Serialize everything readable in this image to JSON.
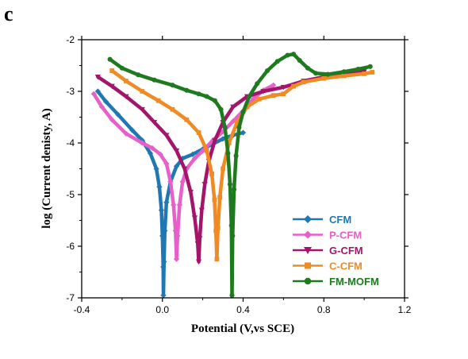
{
  "panel_label": "c",
  "chart_data": {
    "type": "line",
    "xlabel": "Potential (V,vs SCE)",
    "ylabel": "log (Current denisty, A)",
    "xlim": [
      -0.4,
      1.2
    ],
    "ylim": [
      -7,
      -2
    ],
    "xticks": [
      "-0.4",
      "0.0",
      "0.4",
      "0.8",
      "1.2"
    ],
    "yticks": [
      "-2",
      "-3",
      "-4",
      "-5",
      "-6",
      "-7"
    ],
    "legend_position": "bottom-right",
    "grid": false,
    "series": [
      {
        "name": "CFM",
        "color": "#1f77b4",
        "marker": "diamond",
        "points": [
          [
            -0.32,
            -3.0
          ],
          [
            -0.28,
            -3.2
          ],
          [
            -0.22,
            -3.45
          ],
          [
            -0.15,
            -3.75
          ],
          [
            -0.1,
            -3.95
          ],
          [
            -0.06,
            -4.2
          ],
          [
            -0.03,
            -4.5
          ],
          [
            -0.015,
            -4.85
          ],
          [
            -0.005,
            -5.3
          ],
          [
            0.0,
            -5.8
          ],
          [
            0.004,
            -6.4
          ],
          [
            0.005,
            -6.95
          ],
          [
            0.008,
            -6.3
          ],
          [
            0.012,
            -5.7
          ],
          [
            0.02,
            -5.15
          ],
          [
            0.04,
            -4.75
          ],
          [
            0.07,
            -4.45
          ],
          [
            0.1,
            -4.3
          ],
          [
            0.15,
            -4.22
          ],
          [
            0.2,
            -4.12
          ],
          [
            0.25,
            -4.02
          ],
          [
            0.3,
            -3.92
          ],
          [
            0.35,
            -3.85
          ],
          [
            0.4,
            -3.8
          ]
        ]
      },
      {
        "name": "P-CFM",
        "color": "#e75fc8",
        "marker": "diamond",
        "points": [
          [
            -0.34,
            -3.05
          ],
          [
            -0.3,
            -3.3
          ],
          [
            -0.25,
            -3.55
          ],
          [
            -0.18,
            -3.82
          ],
          [
            -0.1,
            -4.0
          ],
          [
            -0.05,
            -4.1
          ],
          [
            -0.01,
            -4.22
          ],
          [
            0.02,
            -4.4
          ],
          [
            0.04,
            -4.75
          ],
          [
            0.055,
            -5.2
          ],
          [
            0.065,
            -5.7
          ],
          [
            0.07,
            -6.25
          ],
          [
            0.075,
            -5.8
          ],
          [
            0.085,
            -5.2
          ],
          [
            0.1,
            -4.75
          ],
          [
            0.12,
            -4.5
          ],
          [
            0.16,
            -4.3
          ],
          [
            0.2,
            -4.15
          ],
          [
            0.25,
            -3.95
          ],
          [
            0.3,
            -3.78
          ],
          [
            0.35,
            -3.58
          ],
          [
            0.4,
            -3.38
          ],
          [
            0.45,
            -3.15
          ],
          [
            0.5,
            -2.98
          ],
          [
            0.55,
            -2.88
          ]
        ]
      },
      {
        "name": "G-CFM",
        "color": "#a3146b",
        "marker": "triangle-down",
        "points": [
          [
            -0.32,
            -2.72
          ],
          [
            -0.25,
            -2.9
          ],
          [
            -0.18,
            -3.1
          ],
          [
            -0.1,
            -3.35
          ],
          [
            -0.04,
            -3.6
          ],
          [
            0.02,
            -3.85
          ],
          [
            0.07,
            -4.15
          ],
          [
            0.11,
            -4.5
          ],
          [
            0.14,
            -4.95
          ],
          [
            0.16,
            -5.45
          ],
          [
            0.175,
            -5.95
          ],
          [
            0.18,
            -6.3
          ],
          [
            0.185,
            -5.85
          ],
          [
            0.195,
            -5.3
          ],
          [
            0.21,
            -4.8
          ],
          [
            0.23,
            -4.35
          ],
          [
            0.26,
            -3.95
          ],
          [
            0.3,
            -3.6
          ],
          [
            0.35,
            -3.3
          ],
          [
            0.42,
            -3.1
          ],
          [
            0.5,
            -3.0
          ],
          [
            0.6,
            -2.92
          ],
          [
            0.7,
            -2.8
          ],
          [
            0.8,
            -2.72
          ],
          [
            0.9,
            -2.66
          ],
          [
            1.0,
            -2.62
          ]
        ]
      },
      {
        "name": "C-CFM",
        "color": "#f08a24",
        "marker": "square",
        "points": [
          [
            -0.25,
            -2.6
          ],
          [
            -0.18,
            -2.8
          ],
          [
            -0.1,
            -3.0
          ],
          [
            -0.02,
            -3.18
          ],
          [
            0.05,
            -3.35
          ],
          [
            0.12,
            -3.55
          ],
          [
            0.18,
            -3.8
          ],
          [
            0.22,
            -4.15
          ],
          [
            0.245,
            -4.6
          ],
          [
            0.258,
            -5.1
          ],
          [
            0.265,
            -5.7
          ],
          [
            0.27,
            -6.25
          ],
          [
            0.275,
            -5.65
          ],
          [
            0.285,
            -5.05
          ],
          [
            0.3,
            -4.5
          ],
          [
            0.33,
            -4.0
          ],
          [
            0.37,
            -3.6
          ],
          [
            0.42,
            -3.3
          ],
          [
            0.48,
            -3.15
          ],
          [
            0.55,
            -3.08
          ],
          [
            0.6,
            -3.05
          ],
          [
            0.65,
            -2.9
          ],
          [
            0.7,
            -2.82
          ],
          [
            0.8,
            -2.75
          ],
          [
            0.9,
            -2.7
          ],
          [
            1.0,
            -2.66
          ],
          [
            1.04,
            -2.63
          ]
        ]
      },
      {
        "name": "FM-MOFM",
        "color": "#1e7a1e",
        "marker": "circle",
        "points": [
          [
            -0.26,
            -2.38
          ],
          [
            -0.2,
            -2.55
          ],
          [
            -0.12,
            -2.68
          ],
          [
            -0.04,
            -2.78
          ],
          [
            0.05,
            -2.88
          ],
          [
            0.12,
            -2.98
          ],
          [
            0.18,
            -3.05
          ],
          [
            0.22,
            -3.1
          ],
          [
            0.26,
            -3.18
          ],
          [
            0.29,
            -3.35
          ],
          [
            0.31,
            -3.7
          ],
          [
            0.325,
            -4.2
          ],
          [
            0.335,
            -4.8
          ],
          [
            0.342,
            -5.6
          ],
          [
            0.345,
            -6.95
          ],
          [
            0.348,
            -5.8
          ],
          [
            0.355,
            -4.9
          ],
          [
            0.365,
            -4.25
          ],
          [
            0.38,
            -3.7
          ],
          [
            0.4,
            -3.4
          ],
          [
            0.43,
            -3.1
          ],
          [
            0.47,
            -2.85
          ],
          [
            0.52,
            -2.6
          ],
          [
            0.57,
            -2.42
          ],
          [
            0.62,
            -2.3
          ],
          [
            0.65,
            -2.28
          ],
          [
            0.68,
            -2.4
          ],
          [
            0.72,
            -2.55
          ],
          [
            0.76,
            -2.65
          ],
          [
            0.82,
            -2.67
          ],
          [
            0.9,
            -2.62
          ],
          [
            0.97,
            -2.57
          ],
          [
            1.03,
            -2.52
          ]
        ]
      }
    ]
  }
}
